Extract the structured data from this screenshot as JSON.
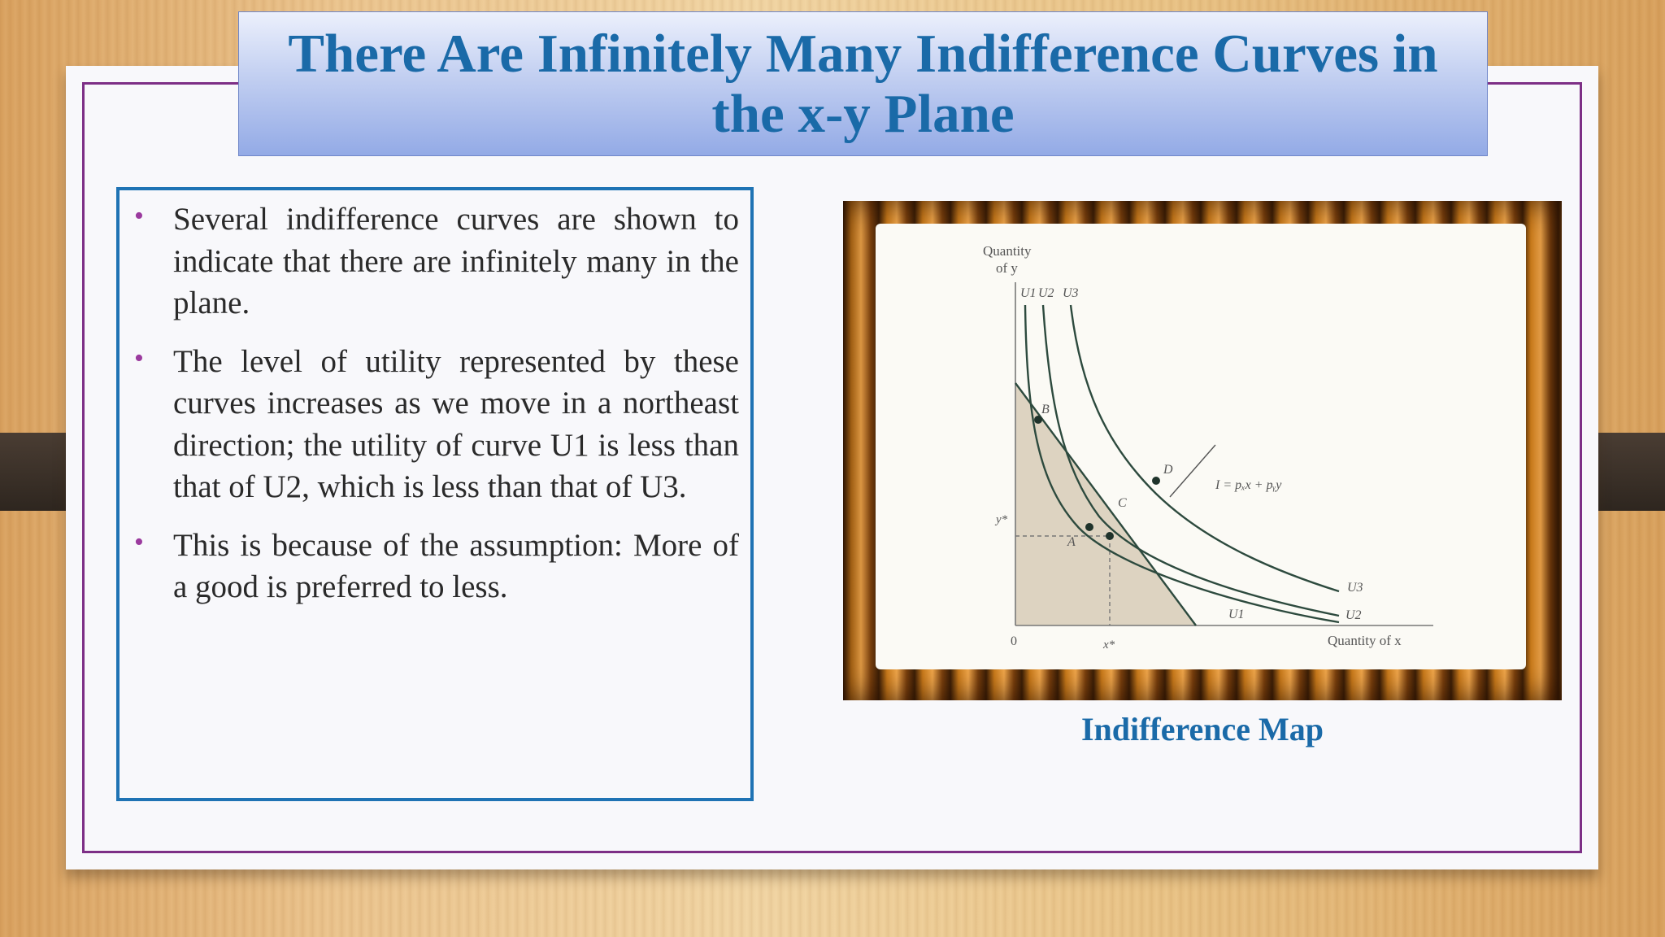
{
  "title": "There Are Infinitely Many Indifference Curves in the x-y Plane",
  "bullets": [
    "Several indifference curves are shown to indicate that there are infinitely many in the plane.",
    "The level of utility represented by these curves increases as we move in a northeast direction; the utility of curve U1 is less than that of U2, which is less than that of U3.",
    "This is because of the assumption: More of a good is preferred to less."
  ],
  "figure": {
    "caption": "Indifference Map",
    "y_axis_label_line1": "Quantity",
    "y_axis_label_line2": "of y",
    "x_axis_label": "Quantity of x",
    "origin": "0",
    "x_star": "x*",
    "y_star": "y*",
    "budget_label": "I = pₓx + pᵧy",
    "curve_labels_top": [
      "U1",
      "U2",
      "U3"
    ],
    "curve_labels_end": [
      "U1",
      "U2",
      "U3"
    ],
    "point_labels": [
      "A",
      "B",
      "C",
      "D"
    ]
  },
  "colors": {
    "title": "#1a6aa8",
    "frame": "#7d2f86",
    "text_box_border": "#1f73b4",
    "curve": "#2d4a3e",
    "budget_fill": "#ddd3c1"
  }
}
